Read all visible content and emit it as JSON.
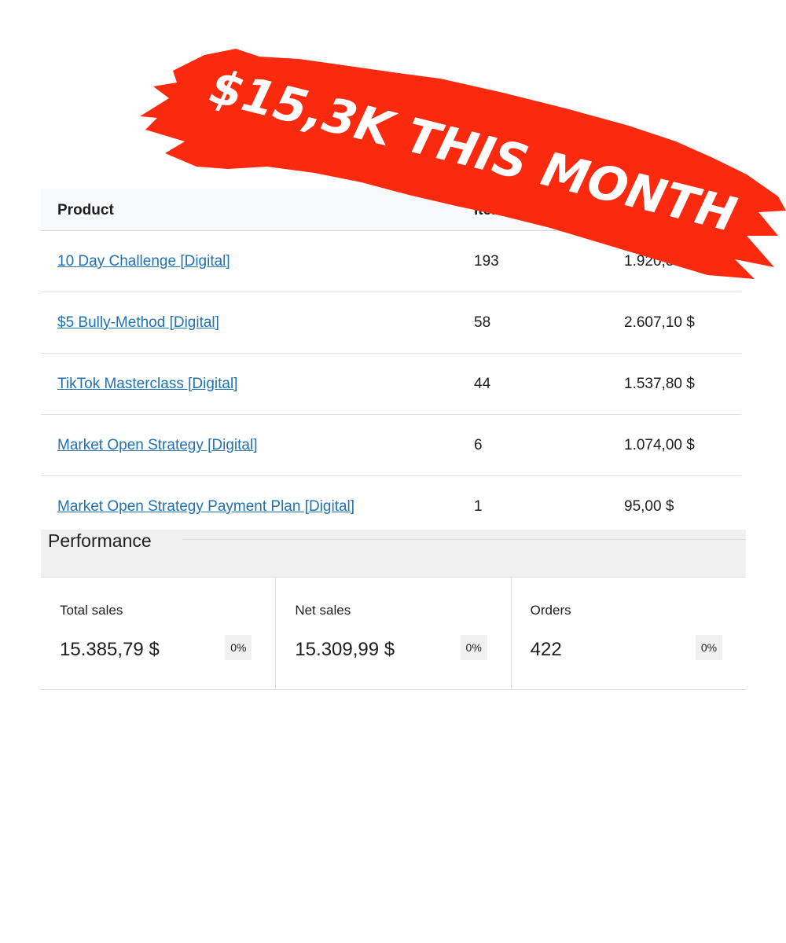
{
  "banner": {
    "text": "$15,3K THIS MONTH",
    "color": "#fb2a0f"
  },
  "table": {
    "headers": [
      "Product",
      "Items sold",
      ""
    ],
    "rows": [
      {
        "product": "10 Day Challenge [Digital]",
        "items": "193",
        "sales": "1.920,35 $"
      },
      {
        "product": "$5 Bully-Method [Digital]",
        "items": "58",
        "sales": "2.607,10 $"
      },
      {
        "product": "TikTok Masterclass [Digital]",
        "items": "44",
        "sales": "1.537,80 $"
      },
      {
        "product": "Market Open Strategy [Digital]",
        "items": "6",
        "sales": "1.074,00 $"
      },
      {
        "product": "Market Open Strategy Payment Plan [Digital]",
        "items": "1",
        "sales": "95,00 $"
      }
    ]
  },
  "performance": {
    "title": "Performance",
    "cards": [
      {
        "label": "Total sales",
        "value": "15.385,79 $",
        "change": "0%"
      },
      {
        "label": "Net sales",
        "value": "15.309,99 $",
        "change": "0%"
      },
      {
        "label": "Orders",
        "value": "422",
        "change": "0%"
      }
    ]
  }
}
